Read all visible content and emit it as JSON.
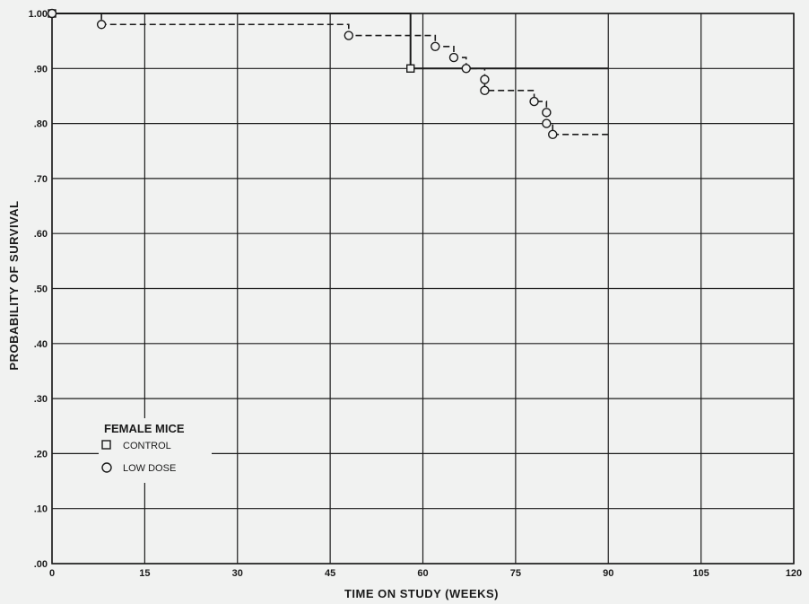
{
  "chart_data": {
    "type": "line",
    "xlabel": "TIME ON STUDY (WEEKS)",
    "ylabel": "PROBABILITY OF SURVIVAL",
    "xlim": [
      0,
      120
    ],
    "ylim": [
      0,
      1
    ],
    "x_ticks": [
      0,
      15,
      30,
      45,
      60,
      75,
      90,
      105,
      120
    ],
    "x_tick_labels": [
      "0",
      "15",
      "30",
      "45",
      "60",
      "75",
      "90",
      "105",
      "120"
    ],
    "y_ticks": [
      0,
      0.1,
      0.2,
      0.3,
      0.4,
      0.5,
      0.6,
      0.7,
      0.8,
      0.9,
      1.0
    ],
    "y_tick_labels": [
      ".00",
      ".10",
      ".20",
      ".30",
      ".40",
      ".50",
      ".60",
      ".70",
      ".80",
      ".90",
      "1.00"
    ],
    "grid": true,
    "legend": {
      "title": "FEMALE MICE",
      "position": "lower-left",
      "entries": [
        {
          "label": "CONTROL",
          "marker": "square",
          "line": "solid"
        },
        {
          "label": "LOW DOSE",
          "marker": "circle",
          "line": "dashed"
        }
      ]
    },
    "series": [
      {
        "name": "CONTROL",
        "step": true,
        "x_end": 90,
        "points": [
          {
            "x": 0,
            "y": 1.0
          },
          {
            "x": 58,
            "y": 0.9
          }
        ]
      },
      {
        "name": "LOW DOSE",
        "step": true,
        "x_end": 90,
        "points": [
          {
            "x": 0,
            "y": 1.0
          },
          {
            "x": 8,
            "y": 0.98
          },
          {
            "x": 48,
            "y": 0.96
          },
          {
            "x": 62,
            "y": 0.94
          },
          {
            "x": 65,
            "y": 0.92
          },
          {
            "x": 67,
            "y": 0.9
          },
          {
            "x": 70,
            "y": 0.88
          },
          {
            "x": 70,
            "y": 0.86
          },
          {
            "x": 78,
            "y": 0.84
          },
          {
            "x": 80,
            "y": 0.82
          },
          {
            "x": 80,
            "y": 0.8
          },
          {
            "x": 81,
            "y": 0.78
          }
        ]
      }
    ]
  }
}
